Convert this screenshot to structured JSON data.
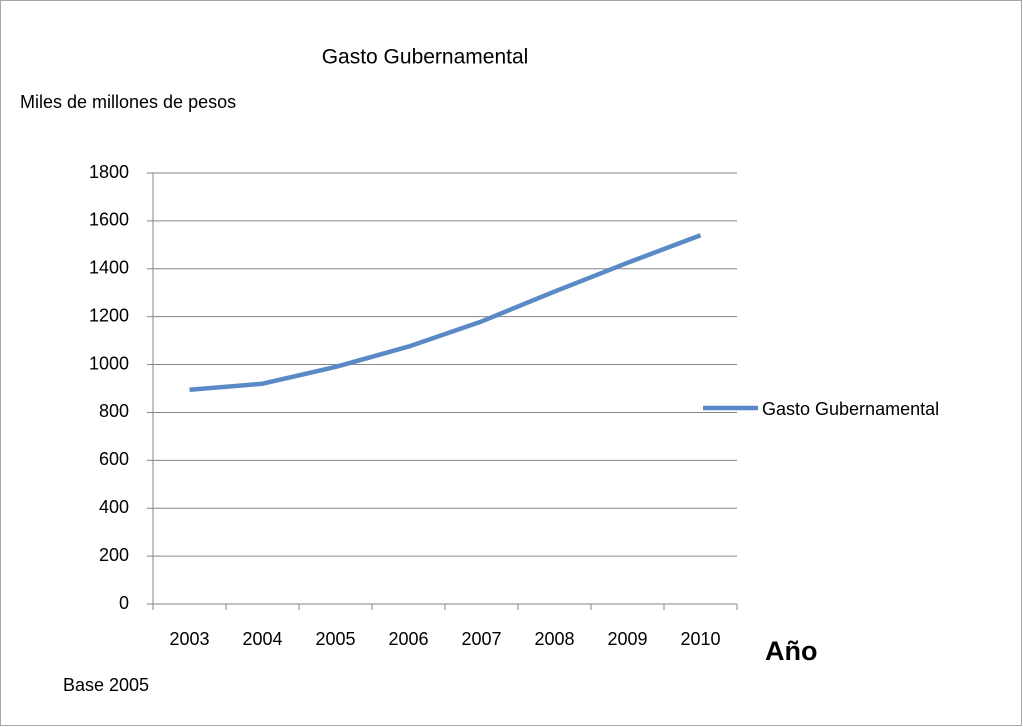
{
  "chart_data": {
    "type": "line",
    "title": "Gasto Gubernamental",
    "y_label": "Miles de millones de pesos",
    "x_label": "Año",
    "annotations": [
      "Base 2005"
    ],
    "categories": [
      "2003",
      "2004",
      "2005",
      "2006",
      "2007",
      "2008",
      "2009",
      "2010"
    ],
    "series": [
      {
        "name": "Gasto Gubernamental",
        "color": "#5a8ac6",
        "values": [
          895,
          920,
          990,
          1075,
          1180,
          1305,
          1425,
          1540
        ]
      }
    ],
    "ylim": [
      0,
      1800
    ],
    "yticks": [
      0,
      200,
      400,
      600,
      800,
      1000,
      1200,
      1400,
      1600,
      1800
    ],
    "grid": true,
    "legend": "right"
  }
}
